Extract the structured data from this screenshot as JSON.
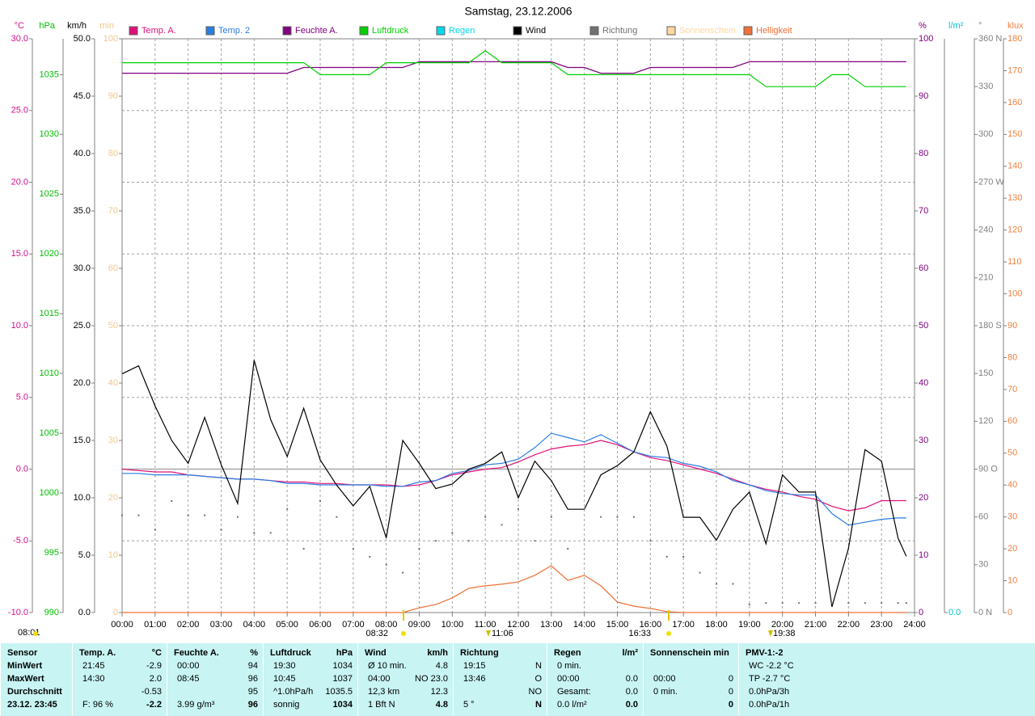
{
  "chart_data": {
    "type": "line",
    "title": "Samstag, 23.12.2006",
    "xlim": [
      0,
      24
    ],
    "xticks": [
      {
        "value": 0,
        "label": "00:00"
      },
      {
        "value": 1,
        "label": "01:00"
      },
      {
        "value": 2,
        "label": "02:00"
      },
      {
        "value": 3,
        "label": "03:00"
      },
      {
        "value": 4,
        "label": "04:00"
      },
      {
        "value": 5,
        "label": "05:00"
      },
      {
        "value": 6,
        "label": "06:00"
      },
      {
        "value": 7,
        "label": "07:00"
      },
      {
        "value": 8,
        "label": "08:00"
      },
      {
        "value": 9,
        "label": "09:00"
      },
      {
        "value": 10,
        "label": "10:00"
      },
      {
        "value": 11,
        "label": "11:00"
      },
      {
        "value": 12,
        "label": "12:00"
      },
      {
        "value": 13,
        "label": "13:00"
      },
      {
        "value": 14,
        "label": "14:00"
      },
      {
        "value": 15,
        "label": "15:00"
      },
      {
        "value": 16,
        "label": "16:00"
      },
      {
        "value": 17,
        "label": "17:00"
      },
      {
        "value": 18,
        "label": "18:00"
      },
      {
        "value": 19,
        "label": "19:00"
      },
      {
        "value": 20,
        "label": "20:00"
      },
      {
        "value": 21,
        "label": "21:00"
      },
      {
        "value": 22,
        "label": "22:00"
      },
      {
        "value": 23,
        "label": "23:00"
      },
      {
        "value": 24,
        "label": "24:00"
      }
    ],
    "grid": true,
    "axes": [
      {
        "label": "°C",
        "color": "#d0108a",
        "ylim": [
          -10,
          30
        ],
        "yticks": [
          {
            "value": -10,
            "label": "-10.0"
          },
          {
            "value": -5,
            "label": "-5.0"
          },
          {
            "value": 0,
            "label": "0.0"
          },
          {
            "value": 5,
            "label": "5.0"
          },
          {
            "value": 10,
            "label": "10.0"
          },
          {
            "value": 15,
            "label": "15.0"
          },
          {
            "value": 20,
            "label": "20.0"
          },
          {
            "value": 25,
            "label": "25.0"
          },
          {
            "value": 30,
            "label": "30.0"
          }
        ]
      },
      {
        "label": "hPa",
        "color": "#00c000",
        "ylim": [
          990,
          1038
        ],
        "yticks": [
          990,
          995,
          1000,
          1005,
          1010,
          1015,
          1020,
          1025,
          1030,
          1035
        ]
      },
      {
        "label": "km/h",
        "color": "#000000",
        "ylim": [
          0,
          50
        ],
        "yticks": [
          {
            "value": 0,
            "label": "0.0"
          },
          {
            "value": 5,
            "label": "5.0"
          },
          {
            "value": 10,
            "label": "10.0"
          },
          {
            "value": 15,
            "label": "15.0"
          },
          {
            "value": 20,
            "label": "20.0"
          },
          {
            "value": 25,
            "label": "25.0"
          },
          {
            "value": 30,
            "label": "30.0"
          },
          {
            "value": 35,
            "label": "35.0"
          },
          {
            "value": 40,
            "label": "40.0"
          },
          {
            "value": 45,
            "label": "45.0"
          },
          {
            "value": 50,
            "label": "50.0"
          }
        ]
      },
      {
        "label": "min",
        "color": "#f0c890",
        "ylim": [
          0,
          100
        ],
        "yticks": [
          0,
          10,
          20,
          30,
          40,
          50,
          60,
          70,
          80,
          90,
          100
        ]
      },
      {
        "label": "%",
        "color": "#800080",
        "ylim": [
          0,
          100
        ],
        "yticks": [
          0,
          10,
          20,
          30,
          40,
          50,
          60,
          70,
          80,
          90,
          100
        ]
      },
      {
        "label": "l/m²",
        "color": "#00c8d8",
        "yticks": [
          {
            "value": 0,
            "label": "0.0"
          }
        ]
      },
      {
        "label": "°",
        "color": "#808080",
        "ylim": [
          0,
          360
        ],
        "yticks": [
          {
            "value": 0,
            "label": "0 N"
          },
          30,
          60,
          {
            "value": 90,
            "label": "90 O"
          },
          120,
          150,
          {
            "value": 180,
            "label": "180 S"
          },
          210,
          240,
          {
            "value": 270,
            "label": "270 W"
          },
          300,
          330,
          {
            "value": 360,
            "label": "360 N"
          }
        ]
      },
      {
        "label": "klux",
        "color": "#f08040",
        "ylim": [
          0,
          180
        ],
        "yticks": [
          0,
          10,
          20,
          30,
          40,
          50,
          60,
          70,
          80,
          90,
          100,
          110,
          120,
          130,
          140,
          150,
          160,
          170,
          180
        ]
      }
    ],
    "hline": {
      "axis": "°C",
      "value": 0,
      "color": "#a8a8a8"
    },
    "x": [
      0,
      0.5,
      1,
      1.5,
      2,
      2.5,
      3,
      3.5,
      4,
      4.5,
      5,
      5.5,
      6,
      6.5,
      7,
      7.5,
      8,
      8.5,
      9,
      9.5,
      10,
      10.5,
      11,
      11.5,
      12,
      12.5,
      13,
      13.5,
      14,
      14.5,
      15,
      15.5,
      16,
      16.5,
      17,
      17.5,
      18,
      18.5,
      19,
      19.5,
      20,
      20.5,
      21,
      21.5,
      22,
      22.5,
      23,
      23.5,
      23.75
    ],
    "series": [
      {
        "name": "Temp. A.",
        "color": "#e0107a",
        "axis": "°C",
        "values": [
          0.0,
          -0.1,
          -0.2,
          -0.2,
          -0.4,
          -0.5,
          -0.6,
          -0.7,
          -0.7,
          -0.8,
          -0.9,
          -0.9,
          -1.0,
          -1.0,
          -1.1,
          -1.1,
          -1.1,
          -1.2,
          -1.1,
          -0.8,
          -0.4,
          -0.2,
          0.0,
          0.1,
          0.5,
          1.0,
          1.4,
          1.6,
          1.7,
          2.0,
          1.7,
          1.2,
          0.8,
          0.6,
          0.3,
          0.0,
          -0.3,
          -0.7,
          -1.1,
          -1.4,
          -1.6,
          -1.9,
          -2.1,
          -2.6,
          -2.9,
          -2.7,
          -2.2,
          -2.2,
          -2.2
        ]
      },
      {
        "name": "Temp. 2",
        "color": "#2a7de0",
        "axis": "°C",
        "values": [
          -0.3,
          -0.3,
          -0.4,
          -0.4,
          -0.4,
          -0.5,
          -0.6,
          -0.7,
          -0.7,
          -0.8,
          -1.0,
          -1.0,
          -1.1,
          -1.1,
          -1.1,
          -1.1,
          -1.2,
          -1.2,
          -0.9,
          -0.8,
          -0.3,
          -0.1,
          0.3,
          0.4,
          0.7,
          1.5,
          2.5,
          2.2,
          1.9,
          2.4,
          1.8,
          1.2,
          0.9,
          0.8,
          0.4,
          0.2,
          -0.2,
          -0.8,
          -1.1,
          -1.5,
          -1.7,
          -1.8,
          -1.8,
          -3.1,
          -3.9,
          -3.7,
          -3.5,
          -3.4,
          -3.4
        ]
      },
      {
        "name": "Feuchte A.",
        "color": "#800080",
        "axis": "%",
        "values": [
          94,
          94,
          94,
          94,
          94,
          94,
          94,
          94,
          94,
          94,
          94,
          95,
          95,
          95,
          95,
          95,
          95,
          95,
          96,
          96,
          96,
          96,
          96,
          96,
          96,
          96,
          96,
          95,
          95,
          94,
          94,
          94,
          95,
          95,
          95,
          95,
          95,
          95,
          96,
          96,
          96,
          96,
          96,
          96,
          96,
          96,
          96,
          96,
          96
        ]
      },
      {
        "name": "Luftdruck",
        "color": "#00d000",
        "axis": "hPa",
        "values": [
          1036,
          1036,
          1036,
          1036,
          1036,
          1036,
          1036,
          1036,
          1036,
          1036,
          1036,
          1036,
          1035,
          1035,
          1035,
          1035,
          1036,
          1036,
          1036,
          1036,
          1036,
          1036,
          1037,
          1036,
          1036,
          1036,
          1036,
          1035,
          1035,
          1035,
          1035,
          1035,
          1035,
          1035,
          1035,
          1035,
          1035,
          1035,
          1035,
          1034,
          1034,
          1034,
          1034,
          1035,
          1035,
          1034,
          1034,
          1034,
          1034
        ]
      },
      {
        "name": "Regen",
        "color": "#00d8e8",
        "axis": "l/m²"
      },
      {
        "name": "Wind",
        "color": "#000000",
        "axis": "km/h",
        "values": [
          20.8,
          21.5,
          18.0,
          15.0,
          13.0,
          17.0,
          12.9,
          9.5,
          22.0,
          16.8,
          13.6,
          17.8,
          13.3,
          11.1,
          9.3,
          11.0,
          6.5,
          15.0,
          13.0,
          10.8,
          11.2,
          12.5,
          13.0,
          14.0,
          10.0,
          13.2,
          11.5,
          9.0,
          9.0,
          12.0,
          12.8,
          14.0,
          17.5,
          14.5,
          8.3,
          8.3,
          6.3,
          9.0,
          10.5,
          6.0,
          12.0,
          10.5,
          10.5,
          0.5,
          5.6,
          14.2,
          13.2,
          6.5,
          4.9
        ]
      },
      {
        "name": "Richtung",
        "color": "#707070",
        "axis": "°",
        "style": "dots",
        "values": [
          61,
          61,
          52,
          70,
          61,
          61,
          52,
          60,
          50,
          50,
          65,
          40,
          70,
          60,
          40,
          35,
          30,
          25,
          40,
          45,
          50,
          45,
          60,
          55,
          65,
          45,
          60,
          40,
          65,
          60,
          60,
          60,
          45,
          35,
          35,
          25,
          18,
          18,
          5,
          6,
          6,
          6,
          6,
          6,
          6,
          6,
          6,
          6,
          6
        ]
      },
      {
        "name": "Sonnenschein",
        "color": "#ffd8a0",
        "axis": "min"
      },
      {
        "name": "Helligkeit",
        "color": "#f07038",
        "axis": "klux",
        "values": [
          0,
          0,
          0,
          0,
          0,
          0,
          0,
          0,
          0,
          0,
          0,
          0,
          0,
          0,
          0,
          0,
          0,
          0,
          1.5,
          2.5,
          4.6,
          7.6,
          8.4,
          8.9,
          9.6,
          11.7,
          14.7,
          10.1,
          11.7,
          8.4,
          3.3,
          2.0,
          1.3,
          0.3,
          0,
          0,
          0,
          0,
          0,
          0,
          0,
          0,
          0,
          0,
          0,
          0,
          0,
          0,
          0
        ]
      }
    ],
    "sun_events": [
      "08:01",
      "08:32",
      "11:06",
      "16:33",
      "19:38"
    ]
  },
  "table": {
    "columns": [
      {
        "header": "Sensor",
        "cells": [
          {
            "l": "MinWert"
          },
          {
            "l": "MaxWert"
          },
          {
            "l": "Durchschnitt"
          },
          {
            "l": "23.12. 23:45"
          }
        ]
      },
      {
        "header": "Temp. A.",
        "unit": "°C",
        "cells": [
          {
            "l": "21:45",
            "r": "-2.9"
          },
          {
            "l": "14:30",
            "r": "2.0"
          },
          {
            "r": "-0.53"
          },
          {
            "l": "F: 96 %",
            "r": "-2.2"
          }
        ]
      },
      {
        "header": "Feuchte A.",
        "unit": "%",
        "cells": [
          {
            "l": "00:00",
            "r": "94"
          },
          {
            "l": "08:45",
            "r": "96"
          },
          {
            "r": "95"
          },
          {
            "l": "3.99 g/m³",
            "r": "96"
          }
        ]
      },
      {
        "header": "Luftdruck",
        "unit": "hPa",
        "cells": [
          {
            "l": "19:30",
            "r": "1034"
          },
          {
            "l": "10:45",
            "r": "1037"
          },
          {
            "l": "^1.0hPa/h",
            "r": "1035.5"
          },
          {
            "l": "sonnig",
            "r": "1034"
          }
        ]
      },
      {
        "header": "Wind",
        "unit": "km/h",
        "cells": [
          {
            "l": "Ø 10 min.",
            "r": "4.8"
          },
          {
            "l": "04:00",
            "r": "NO 23.0"
          },
          {
            "l": "12,3 km",
            "r": "12.3"
          },
          {
            "l": "1 Bft N",
            "r": "4.8"
          }
        ]
      },
      {
        "header": "Richtung",
        "cells": [
          {
            "l": "19:15",
            "r": "N"
          },
          {
            "l": "13:46",
            "r": "O"
          },
          {
            "r": "NO"
          },
          {
            "l": "5 °",
            "r": "N"
          }
        ]
      },
      {
        "header": "Regen",
        "unit": "l/m²",
        "cells": [
          {
            "l": "0 min."
          },
          {
            "l": "00:00",
            "r": "0.0"
          },
          {
            "l": "Gesamt:",
            "r": "0.0"
          },
          {
            "l": "0.0 l/m²",
            "r": "0.0"
          }
        ]
      },
      {
        "header": "Sonnenschein min",
        "cells": [
          {},
          {
            "l": "00:00",
            "r": "0"
          },
          {
            "l": "0 min.",
            "r": "0"
          },
          {
            "r": "0"
          }
        ]
      },
      {
        "header": "PMV-1:-2",
        "cells": [
          {
            "l": "WC -2.2 °C"
          },
          {
            "l": "TP -2.7 °C"
          },
          {
            "l": "0.0hPa/3h"
          },
          {
            "l": "0.0hPa/1h"
          }
        ]
      }
    ]
  }
}
